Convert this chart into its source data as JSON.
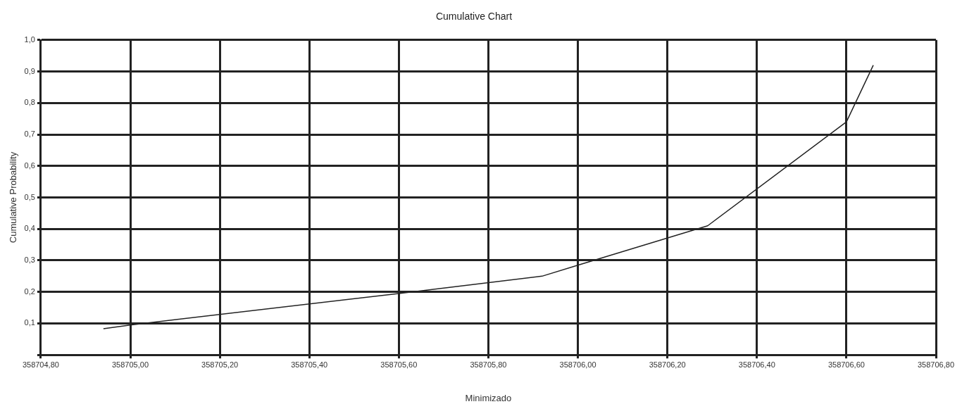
{
  "chart_data": {
    "type": "line",
    "title": "Cumulative Chart",
    "xlabel": "Minimizado",
    "ylabel": "Cumulative Probability",
    "x": [
      358704.94,
      358705.0,
      358705.6,
      358705.92,
      358706.0,
      358706.29,
      358706.6,
      358706.66
    ],
    "series": [
      {
        "color": "#222222",
        "values": [
          0.083,
          0.095,
          0.195,
          0.25,
          0.285,
          0.41,
          0.74,
          0.92
        ]
      }
    ],
    "xlim": [
      358704.8,
      358706.8
    ],
    "xticks": [
      {
        "value": 358704.8,
        "label": "358704,80"
      },
      {
        "value": 358705.0,
        "label": "358705,00"
      },
      {
        "value": 358705.2,
        "label": "358705,20"
      },
      {
        "value": 358705.4,
        "label": "358705,40"
      },
      {
        "value": 358705.6,
        "label": "358705,60"
      },
      {
        "value": 358705.8,
        "label": "358705,80"
      },
      {
        "value": 358706.0,
        "label": "358706,00"
      },
      {
        "value": 358706.2,
        "label": "358706,20"
      },
      {
        "value": 358706.4,
        "label": "358706,40"
      },
      {
        "value": 358706.6,
        "label": "358706,60"
      },
      {
        "value": 358706.8,
        "label": "358706,80"
      }
    ],
    "ylim": [
      0,
      1
    ],
    "yticks": [
      {
        "value": 0,
        "label": null
      },
      {
        "value": 0.1,
        "label": "0,1"
      },
      {
        "value": 0.2,
        "label": "0,2"
      },
      {
        "value": 0.3,
        "label": "0,3"
      },
      {
        "value": 0.4,
        "label": "0,4"
      },
      {
        "value": 0.5,
        "label": "0,5"
      },
      {
        "value": 0.6,
        "label": "0,6"
      },
      {
        "value": 0.7,
        "label": "0,7"
      },
      {
        "value": 0.8,
        "label": "0,8"
      },
      {
        "value": 0.9,
        "label": "0,9"
      },
      {
        "value": 1.0,
        "label": "1,0"
      }
    ],
    "grid": true,
    "marker": "none",
    "line_style": "solid"
  }
}
